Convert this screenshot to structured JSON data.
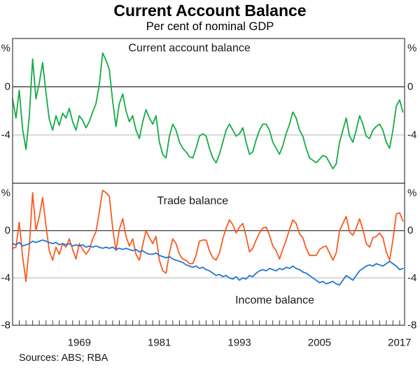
{
  "header": {
    "title": "Current Account Balance",
    "subtitle": "Per cent of nominal GDP"
  },
  "source": "Sources: ABS; RBA",
  "colors": {
    "axis": "#3d3d3d",
    "zero_line": "#4d4d4d",
    "minor_grid": "#b5b5b5",
    "text": "#1a1a1a",
    "green": "#12AC44",
    "orange": "#FB5B21",
    "blue": "#2176D2"
  },
  "chart_data": {
    "type": "line",
    "x_start": 1959.0,
    "x_step": 0.5,
    "x_range": [
      1959,
      2017.75
    ],
    "ylim": [
      -8,
      4
    ],
    "y_unit": "%",
    "y_gridlines": [
      {
        "value": 0,
        "label": "0",
        "style": "zero"
      },
      {
        "value": -4,
        "label": "-4",
        "style": "minor"
      }
    ],
    "y_bottom_label": "-8",
    "x_tick_labels": [
      "1969",
      "1981",
      "1993",
      "2005",
      "2017"
    ],
    "panels": [
      {
        "name": "current-account",
        "annotations": [
          {
            "text": "Current account balance",
            "x": 1985.5,
            "y": 3.2,
            "color": "#12AC44"
          }
        ],
        "series": [
          {
            "name": "Current account balance",
            "color": "#12AC44",
            "values": [
              -1.0,
              -2.6,
              -0.3,
              -3.5,
              -5.2,
              -2.5,
              2.3,
              -1.0,
              0.3,
              2.0,
              -0.5,
              -2.7,
              -3.6,
              -2.4,
              -3.2,
              -2.2,
              -2.6,
              -1.8,
              -2.9,
              -3.6,
              -2.4,
              -2.8,
              -3.4,
              -2.9,
              -2.1,
              -1.4,
              0.2,
              2.8,
              2.2,
              1.4,
              -1.2,
              -3.3,
              -1.4,
              -0.6,
              -2.0,
              -2.9,
              -2.4,
              -3.6,
              -4.3,
              -2.9,
              -1.9,
              -2.6,
              -3.1,
              -2.4,
              -4.6,
              -5.6,
              -5.9,
              -4.1,
              -3.1,
              -3.6,
              -4.6,
              -5.1,
              -5.4,
              -5.8,
              -5.9,
              -5.1,
              -4.1,
              -3.9,
              -4.1,
              -5.1,
              -5.9,
              -6.3,
              -5.6,
              -4.6,
              -3.6,
              -3.1,
              -3.6,
              -4.1,
              -3.9,
              -3.4,
              -4.6,
              -5.6,
              -5.4,
              -4.4,
              -3.6,
              -3.1,
              -3.1,
              -3.6,
              -4.6,
              -5.1,
              -5.6,
              -4.9,
              -3.9,
              -3.1,
              -2.1,
              -2.6,
              -3.6,
              -4.1,
              -5.1,
              -5.9,
              -6.1,
              -6.3,
              -6.0,
              -5.7,
              -5.8,
              -6.3,
              -6.8,
              -6.4,
              -4.6,
              -3.6,
              -2.6,
              -4.1,
              -4.6,
              -3.6,
              -2.4,
              -3.1,
              -4.1,
              -4.3,
              -3.6,
              -3.3,
              -3.1,
              -3.6,
              -4.6,
              -5.1,
              -3.6,
              -1.6,
              -1.1,
              -2.1
            ]
          }
        ]
      },
      {
        "name": "trade-income",
        "annotations": [
          {
            "text": "Trade balance",
            "x": 1986.0,
            "y": 2.5,
            "color": "#FB5B21"
          },
          {
            "text": "Income balance",
            "x": 1998.3,
            "y": -5.9,
            "color": "#2176D2"
          }
        ],
        "series": [
          {
            "name": "Trade balance",
            "color": "#FB5B21",
            "values": [
              -1.5,
              -1.4,
              0.7,
              -2.2,
              -4.3,
              -1.4,
              3.2,
              0.0,
              1.2,
              2.8,
              0.4,
              -1.7,
              -2.5,
              -1.4,
              -2.0,
              -1.1,
              -1.4,
              -0.7,
              -1.6,
              -2.4,
              -1.1,
              -1.6,
              -2.0,
              -1.6,
              -0.7,
              -0.1,
              1.6,
              3.4,
              3.2,
              2.9,
              0.2,
              -1.7,
              0.1,
              1.0,
              -0.5,
              -1.3,
              -0.7,
              -2.0,
              -2.5,
              -1.2,
              0.0,
              -0.6,
              -1.1,
              -0.5,
              -2.5,
              -3.4,
              -3.6,
              -1.9,
              -0.7,
              -1.1,
              -2.0,
              -2.4,
              -2.5,
              -2.8,
              -2.8,
              -2.1,
              -0.9,
              -0.8,
              -0.8,
              -1.7,
              -2.3,
              -2.5,
              -1.9,
              -0.7,
              0.2,
              0.9,
              0.5,
              -0.2,
              0.3,
              0.6,
              -0.5,
              -1.8,
              -1.5,
              -0.8,
              -0.2,
              0.2,
              0.3,
              -0.4,
              -1.3,
              -1.7,
              -2.4,
              -1.6,
              -0.8,
              0.1,
              0.9,
              0.6,
              -0.3,
              -0.6,
              -1.5,
              -2.1,
              -2.1,
              -2.1,
              -1.6,
              -1.4,
              -1.3,
              -1.9,
              -2.5,
              -1.9,
              0.0,
              0.6,
              1.2,
              -0.1,
              -0.4,
              0.2,
              1.0,
              0.1,
              -1.1,
              -1.4,
              -0.6,
              -0.5,
              -0.2,
              -0.6,
              -1.8,
              -2.5,
              -0.8,
              1.4,
              1.5,
              0.8
            ]
          },
          {
            "name": "Income balance",
            "color": "#2176D2",
            "values": [
              -1.1,
              -1.2,
              -1.0,
              -1.3,
              -1.2,
              -1.1,
              -0.9,
              -1.0,
              -0.9,
              -0.8,
              -0.9,
              -1.0,
              -1.1,
              -1.0,
              -1.2,
              -1.1,
              -1.2,
              -1.1,
              -1.3,
              -1.2,
              -1.3,
              -1.2,
              -1.4,
              -1.3,
              -1.4,
              -1.3,
              -1.4,
              -1.5,
              -1.4,
              -1.5,
              -1.4,
              -1.6,
              -1.5,
              -1.6,
              -1.5,
              -1.6,
              -1.7,
              -1.6,
              -1.8,
              -1.7,
              -1.9,
              -2.0,
              -2.0,
              -1.9,
              -2.1,
              -2.2,
              -2.3,
              -2.2,
              -2.4,
              -2.5,
              -2.6,
              -2.7,
              -2.9,
              -3.0,
              -3.1,
              -3.0,
              -3.2,
              -3.1,
              -3.3,
              -3.4,
              -3.6,
              -3.8,
              -3.7,
              -3.9,
              -3.8,
              -4.0,
              -4.1,
              -3.9,
              -4.2,
              -4.0,
              -4.1,
              -3.8,
              -3.9,
              -3.6,
              -3.4,
              -3.3,
              -3.4,
              -3.2,
              -3.3,
              -3.4,
              -3.2,
              -3.3,
              -3.1,
              -3.2,
              -3.0,
              -3.2,
              -3.3,
              -3.5,
              -3.6,
              -3.8,
              -4.0,
              -4.2,
              -4.4,
              -4.3,
              -4.5,
              -4.4,
              -4.3,
              -4.5,
              -4.6,
              -4.2,
              -3.8,
              -4.0,
              -4.2,
              -3.8,
              -3.4,
              -3.2,
              -3.0,
              -2.9,
              -3.0,
              -2.8,
              -2.9,
              -3.0,
              -2.8,
              -2.6,
              -2.8,
              -3.0,
              -3.3,
              -3.2
            ]
          }
        ]
      }
    ]
  }
}
